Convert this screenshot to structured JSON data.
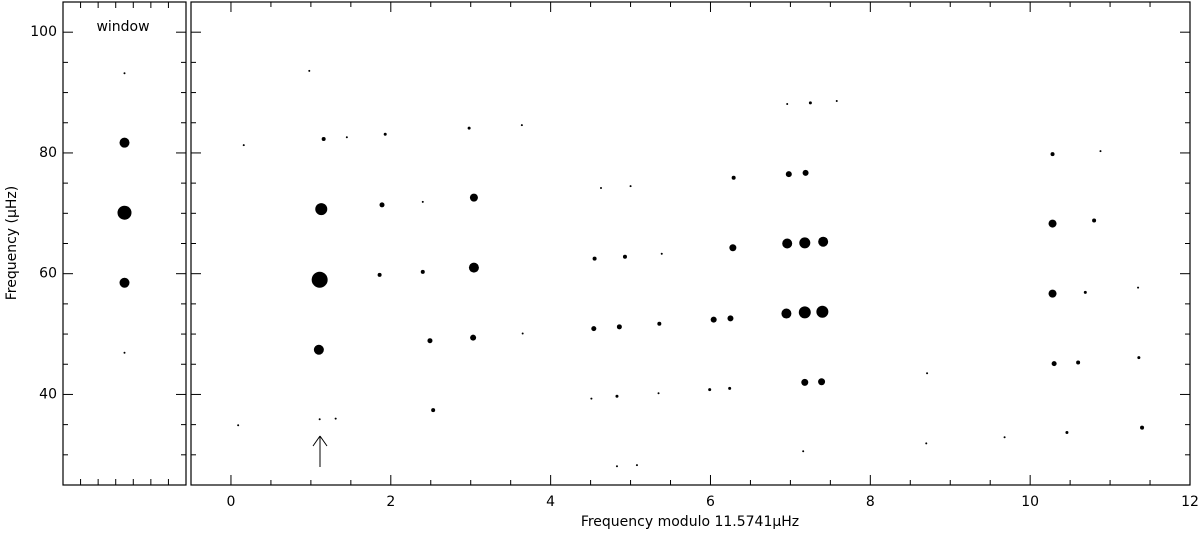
{
  "chart_data": [
    {
      "type": "scatter",
      "title": "window",
      "ylabel": "Frequency (μHz)",
      "y": [
        93.2,
        81.7,
        70.1,
        58.5,
        46.9
      ],
      "sizes": [
        1,
        5,
        7,
        5,
        1
      ],
      "ylim": [
        25,
        105
      ],
      "yticks": [
        40,
        60,
        80,
        100
      ],
      "yminorticks": [
        30,
        35,
        45,
        50,
        55,
        65,
        70,
        75,
        85,
        90,
        95
      ],
      "color": "#000000"
    },
    {
      "type": "scatter",
      "xlabel": "Frequency modulo 11.5741μHz",
      "x": [
        0.09,
        0.16,
        0.98,
        1.16,
        1.45,
        1.93,
        1.13,
        1.11,
        1.1,
        1.11,
        1.31,
        1.89,
        1.86,
        2.4,
        2.4,
        2.49,
        2.53,
        2.98,
        3.04,
        3.04,
        3.03,
        3.64,
        3.65,
        4.51,
        4.54,
        4.55,
        4.63,
        4.83,
        4.83,
        4.86,
        4.93,
        5.0,
        5.08,
        5.35,
        5.36,
        5.39,
        5.99,
        6.04,
        6.24,
        6.25,
        6.28,
        6.29,
        6.96,
        6.95,
        6.96,
        6.98,
        7.16,
        7.18,
        7.18,
        7.18,
        7.19,
        7.25,
        7.39,
        7.4,
        7.41,
        7.58,
        8.71,
        8.7,
        9.68,
        10.28,
        10.28,
        10.28,
        10.3,
        10.46,
        10.6,
        10.69,
        10.8,
        10.88,
        11.35,
        11.36,
        11.4
      ],
      "y": [
        34.9,
        81.3,
        93.6,
        82.3,
        82.6,
        83.1,
        70.7,
        59.0,
        47.4,
        35.9,
        36.0,
        71.4,
        59.8,
        71.9,
        60.3,
        48.9,
        37.4,
        84.1,
        72.6,
        61.0,
        49.4,
        84.6,
        50.1,
        39.3,
        50.9,
        62.5,
        74.2,
        28.1,
        39.7,
        51.2,
        62.8,
        74.5,
        28.3,
        40.2,
        51.7,
        63.3,
        40.8,
        52.4,
        41.0,
        52.6,
        64.3,
        75.9,
        88.1,
        53.4,
        65.0,
        76.5,
        30.6,
        42.0,
        53.6,
        65.1,
        76.7,
        88.3,
        42.1,
        53.7,
        65.3,
        88.6,
        43.5,
        31.9,
        32.9,
        79.8,
        68.3,
        56.7,
        45.1,
        33.7,
        45.3,
        56.9,
        68.8,
        80.3,
        57.7,
        46.1,
        34.5
      ],
      "sizes": [
        1,
        1,
        1,
        2,
        1,
        1.5,
        6,
        8,
        5,
        1,
        1,
        2.5,
        2,
        1,
        2,
        2.5,
        2,
        1.5,
        4,
        5,
        3,
        1,
        1,
        1,
        2.5,
        2,
        1,
        1,
        1.5,
        2.5,
        2,
        1,
        1,
        1,
        2,
        1,
        1.5,
        3,
        1.5,
        3,
        3.5,
        2,
        1,
        5,
        5,
        3,
        1,
        3.5,
        6,
        5.5,
        3,
        1.5,
        3.5,
        6,
        5,
        1,
        1,
        1,
        1,
        2,
        4,
        4,
        2.5,
        1.5,
        2,
        1.5,
        2,
        1,
        1,
        1.5,
        2
      ],
      "xlim": [
        -0.5,
        12
      ],
      "ylim": [
        25,
        105
      ],
      "xticks": [
        0,
        2,
        4,
        6,
        8,
        10,
        12
      ],
      "xminorticks": [
        0.5,
        1,
        1.5,
        2.5,
        3,
        3.5,
        4.5,
        5,
        5.5,
        6.5,
        7,
        7.5,
        8.5,
        9,
        9.5,
        10.5,
        11,
        11.5
      ],
      "color": "#000000"
    }
  ]
}
